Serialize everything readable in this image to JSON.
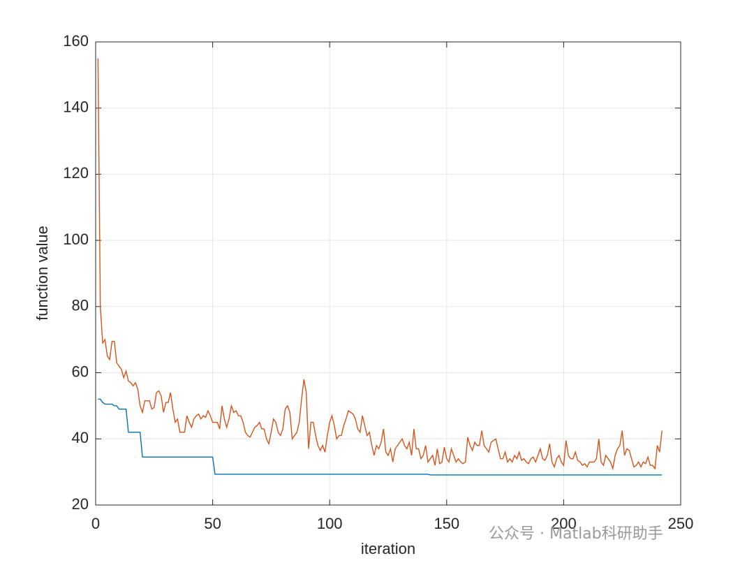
{
  "chart_data": {
    "type": "line",
    "xlabel": "iteration",
    "ylabel": "function value",
    "watermark": "公众号 · Matlab科研助手",
    "xlim": [
      0,
      250
    ],
    "xticks": [
      0,
      50,
      100,
      150,
      200,
      250
    ],
    "ylim": [
      20,
      160
    ],
    "yticks": [
      20,
      40,
      60,
      80,
      100,
      120,
      140,
      160
    ],
    "grid": true,
    "x": [
      1,
      2,
      3,
      4,
      5,
      6,
      7,
      8,
      9,
      10,
      11,
      12,
      13,
      14,
      15,
      16,
      17,
      18,
      19,
      20,
      21,
      22,
      23,
      24,
      25,
      26,
      27,
      28,
      29,
      30,
      31,
      32,
      33,
      34,
      35,
      36,
      37,
      38,
      39,
      40,
      41,
      42,
      43,
      44,
      45,
      46,
      47,
      48,
      49,
      50,
      51,
      52,
      53,
      54,
      55,
      56,
      57,
      58,
      59,
      60,
      61,
      62,
      63,
      64,
      65,
      66,
      67,
      68,
      69,
      70,
      71,
      72,
      73,
      74,
      75,
      76,
      77,
      78,
      79,
      80,
      81,
      82,
      83,
      84,
      85,
      86,
      87,
      88,
      89,
      90,
      91,
      92,
      93,
      94,
      95,
      96,
      97,
      98,
      99,
      100,
      101,
      102,
      103,
      104,
      105,
      106,
      107,
      108,
      109,
      110,
      111,
      112,
      113,
      114,
      115,
      116,
      117,
      118,
      119,
      120,
      121,
      122,
      123,
      124,
      125,
      126,
      127,
      128,
      129,
      130,
      131,
      132,
      133,
      134,
      135,
      136,
      137,
      138,
      139,
      140,
      141,
      142,
      143,
      144,
      145,
      146,
      147,
      148,
      149,
      150,
      151,
      152,
      153,
      154,
      155,
      156,
      157,
      158,
      159,
      160,
      161,
      162,
      163,
      164,
      165,
      166,
      167,
      168,
      169,
      170,
      171,
      172,
      173,
      174,
      175,
      176,
      177,
      178,
      179,
      180,
      181,
      182,
      183,
      184,
      185,
      186,
      187,
      188,
      189,
      190,
      191,
      192,
      193,
      194,
      195,
      196,
      197,
      198,
      199,
      200,
      201,
      202,
      203,
      204,
      205,
      206,
      207,
      208,
      209,
      210,
      211,
      212,
      213,
      214,
      215,
      216,
      217,
      218,
      219,
      220,
      221,
      222,
      223,
      224,
      225,
      226,
      227,
      228,
      229,
      230,
      231,
      232,
      233,
      234,
      235,
      236,
      237,
      238,
      239,
      240,
      241,
      242
    ],
    "series": [
      {
        "color": "#d95319",
        "values": [
          155,
          80,
          69,
          70,
          65,
          64,
          69.5,
          69.5,
          63,
          62,
          61,
          58.5,
          60.5,
          57.5,
          57,
          56,
          57,
          55,
          50,
          48,
          51.5,
          51.5,
          51.5,
          49,
          49.5,
          54,
          54.5,
          53,
          48,
          51,
          51,
          54,
          49,
          45,
          46,
          42,
          42,
          42,
          47,
          45,
          43.5,
          46,
          47,
          47.5,
          46,
          47,
          46.5,
          48.5,
          47,
          45,
          45,
          45,
          43,
          50,
          46,
          43.5,
          46,
          50,
          48,
          48.5,
          47,
          47,
          45,
          42,
          41,
          40.5,
          42,
          43.5,
          44,
          45,
          43,
          43,
          40,
          38.5,
          42,
          46,
          45,
          42,
          41,
          43,
          49,
          50,
          48,
          40,
          41,
          42,
          45,
          52,
          58,
          54,
          37,
          45,
          45,
          41,
          38,
          36.5,
          38,
          36,
          41,
          45,
          47,
          44,
          40,
          41,
          41,
          44,
          46,
          48.5,
          48,
          47.5,
          46,
          43,
          42,
          47,
          44,
          41,
          42,
          38,
          35,
          38,
          37,
          39,
          43,
          36,
          35,
          37,
          33,
          37,
          38,
          39,
          40,
          38,
          37,
          39,
          35,
          43,
          37,
          37,
          34,
          35,
          38,
          33,
          34,
          35,
          32,
          37,
          32.5,
          33,
          37.5,
          34,
          33,
          37,
          35,
          33,
          34,
          33,
          32.5,
          33,
          40.5,
          38,
          36.5,
          39,
          38,
          38,
          42.5,
          38,
          37,
          36,
          39,
          39.5,
          40,
          37,
          34,
          34,
          36,
          33,
          34,
          33,
          35,
          34,
          36,
          33.5,
          34,
          33,
          32.5,
          34,
          34.5,
          33,
          35,
          37,
          34,
          33.5,
          35,
          38.5,
          33,
          31.5,
          34,
          35,
          33,
          32,
          39.5,
          35,
          34,
          34,
          36,
          33.5,
          33,
          32,
          32.5,
          31.5,
          33,
          33,
          33,
          34,
          40,
          33,
          32,
          35,
          34,
          33,
          31,
          35,
          37,
          38,
          42.5,
          35,
          37,
          36.5,
          34,
          31.5,
          32,
          33,
          31.5,
          33,
          32.5,
          34.5,
          32,
          32,
          31,
          38,
          36,
          42.5
        ]
      },
      {
        "color": "#0072bd",
        "values": [
          52,
          52,
          51,
          50.5,
          50.5,
          50.5,
          50.5,
          50,
          50,
          49,
          49,
          49,
          49,
          42,
          42,
          42,
          42,
          42,
          42,
          34.5,
          34.5,
          34.5,
          34.5,
          34.5,
          34.5,
          34.5,
          34.5,
          34.5,
          34.5,
          34.5,
          34.5,
          34.5,
          34.5,
          34.5,
          34.5,
          34.5,
          34.5,
          34.5,
          34.5,
          34.5,
          34.5,
          34.5,
          34.5,
          34.5,
          34.5,
          34.5,
          34.5,
          34.5,
          34.5,
          34.5,
          29.3,
          29.3,
          29.3,
          29.3,
          29.3,
          29.3,
          29.3,
          29.3,
          29.3,
          29.3,
          29.3,
          29.3,
          29.3,
          29.3,
          29.3,
          29.3,
          29.3,
          29.3,
          29.3,
          29.3,
          29.3,
          29.3,
          29.3,
          29.3,
          29.3,
          29.3,
          29.3,
          29.3,
          29.3,
          29.3,
          29.3,
          29.3,
          29.3,
          29.3,
          29.3,
          29.3,
          29.3,
          29.3,
          29.3,
          29.3,
          29.3,
          29.3,
          29.3,
          29.3,
          29.3,
          29.3,
          29.3,
          29.3,
          29.3,
          29.3,
          29.3,
          29.3,
          29.3,
          29.3,
          29.3,
          29.3,
          29.3,
          29.3,
          29.3,
          29.3,
          29.3,
          29.3,
          29.3,
          29.3,
          29.3,
          29.3,
          29.3,
          29.3,
          29.3,
          29.3,
          29.3,
          29.3,
          29.3,
          29.3,
          29.3,
          29.3,
          29.3,
          29.3,
          29.3,
          29.3,
          29.3,
          29.3,
          29.3,
          29.3,
          29.3,
          29.3,
          29.3,
          29.3,
          29.3,
          29.3,
          29.3,
          29.3,
          29.1,
          29.1,
          29.1,
          29.1,
          29.1,
          29.1,
          29.1,
          29.1,
          29.1,
          29.1,
          29.1,
          29.1,
          29.1,
          29.1,
          29.1,
          29.1,
          29.1,
          29.1,
          29.1,
          29.1,
          29.1,
          29.1,
          29.1,
          29.1,
          29.1,
          29.1,
          29.1,
          29.1,
          29.1,
          29.1,
          29.1,
          29.1,
          29.1,
          29.1,
          29.1,
          29.1,
          29.1,
          29.1,
          29.1,
          29.1,
          29.1,
          29.1,
          29.1,
          29.1,
          29.1,
          29.1,
          29.1,
          29.1,
          29.1,
          29.1,
          29.1,
          29.1,
          29.1,
          29.1,
          29.1,
          29.1,
          29.1,
          29.1,
          29.1,
          29.1,
          29.1,
          29.1,
          29.1,
          29.1,
          29.1,
          29.1,
          29.1,
          29.1,
          29.1,
          29.1,
          29.1,
          29.1,
          29.1,
          29.1,
          29.1,
          29.1,
          29.1,
          29.1,
          29.1,
          29.1,
          29.1,
          29.1,
          29.1,
          29.1,
          29.1,
          29.1,
          29.1,
          29.1,
          29.1,
          29.1,
          29.1,
          29.1,
          29.1,
          29.1,
          29.1,
          29.1,
          29.1,
          29.1,
          29.1,
          29.1
        ]
      }
    ]
  }
}
